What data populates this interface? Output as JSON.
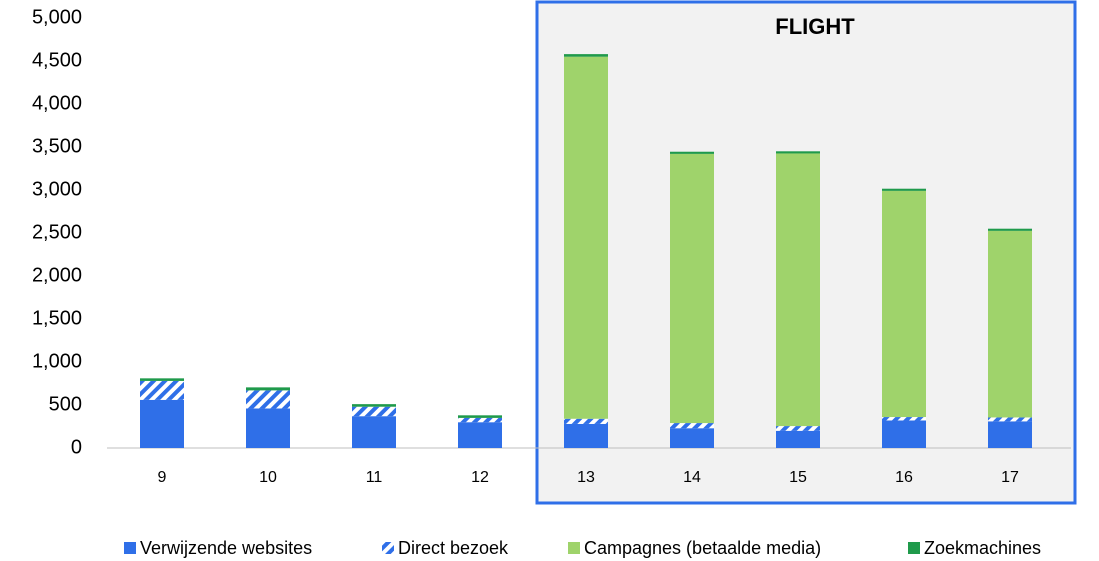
{
  "chart_data": {
    "type": "stacked_bar",
    "annotation": "FLIGHT",
    "categories": [
      "9",
      "10",
      "11",
      "12",
      "13",
      "14",
      "15",
      "16",
      "17"
    ],
    "series": [
      {
        "name": "Verwijzende websites",
        "color": "#2f6fe8",
        "values": [
          560,
          460,
          370,
          300,
          280,
          230,
          200,
          320,
          310
        ]
      },
      {
        "name": "Direct bezoek",
        "color": "#2f6fe8",
        "hatch": true,
        "values": [
          220,
          210,
          110,
          50,
          60,
          60,
          55,
          40,
          45
        ]
      },
      {
        "name": "Campagnes (betaalde media)",
        "color": "#9fd36b",
        "values": [
          0,
          0,
          0,
          0,
          4210,
          3130,
          3170,
          2630,
          2170
        ]
      },
      {
        "name": "Zoekmachines",
        "color": "#1f9a4b",
        "values": [
          30,
          35,
          30,
          30,
          30,
          25,
          25,
          25,
          25
        ]
      }
    ],
    "ylim": [
      0,
      5000
    ],
    "yticks": [
      0,
      500,
      {
        "value": 1000,
        "label": "1,000"
      },
      {
        "value": 1500,
        "label": "1,500"
      },
      {
        "value": 2000,
        "label": "2,000"
      },
      {
        "value": 2500,
        "label": "2,500"
      },
      {
        "value": 3000,
        "label": "3,000"
      },
      {
        "value": 3500,
        "label": "3,500"
      },
      {
        "value": 4000,
        "label": "4,000"
      },
      {
        "value": 4500,
        "label": "4,500"
      },
      {
        "value": 5000,
        "label": "5,000"
      }
    ],
    "grid": false,
    "legend": "bottom"
  }
}
